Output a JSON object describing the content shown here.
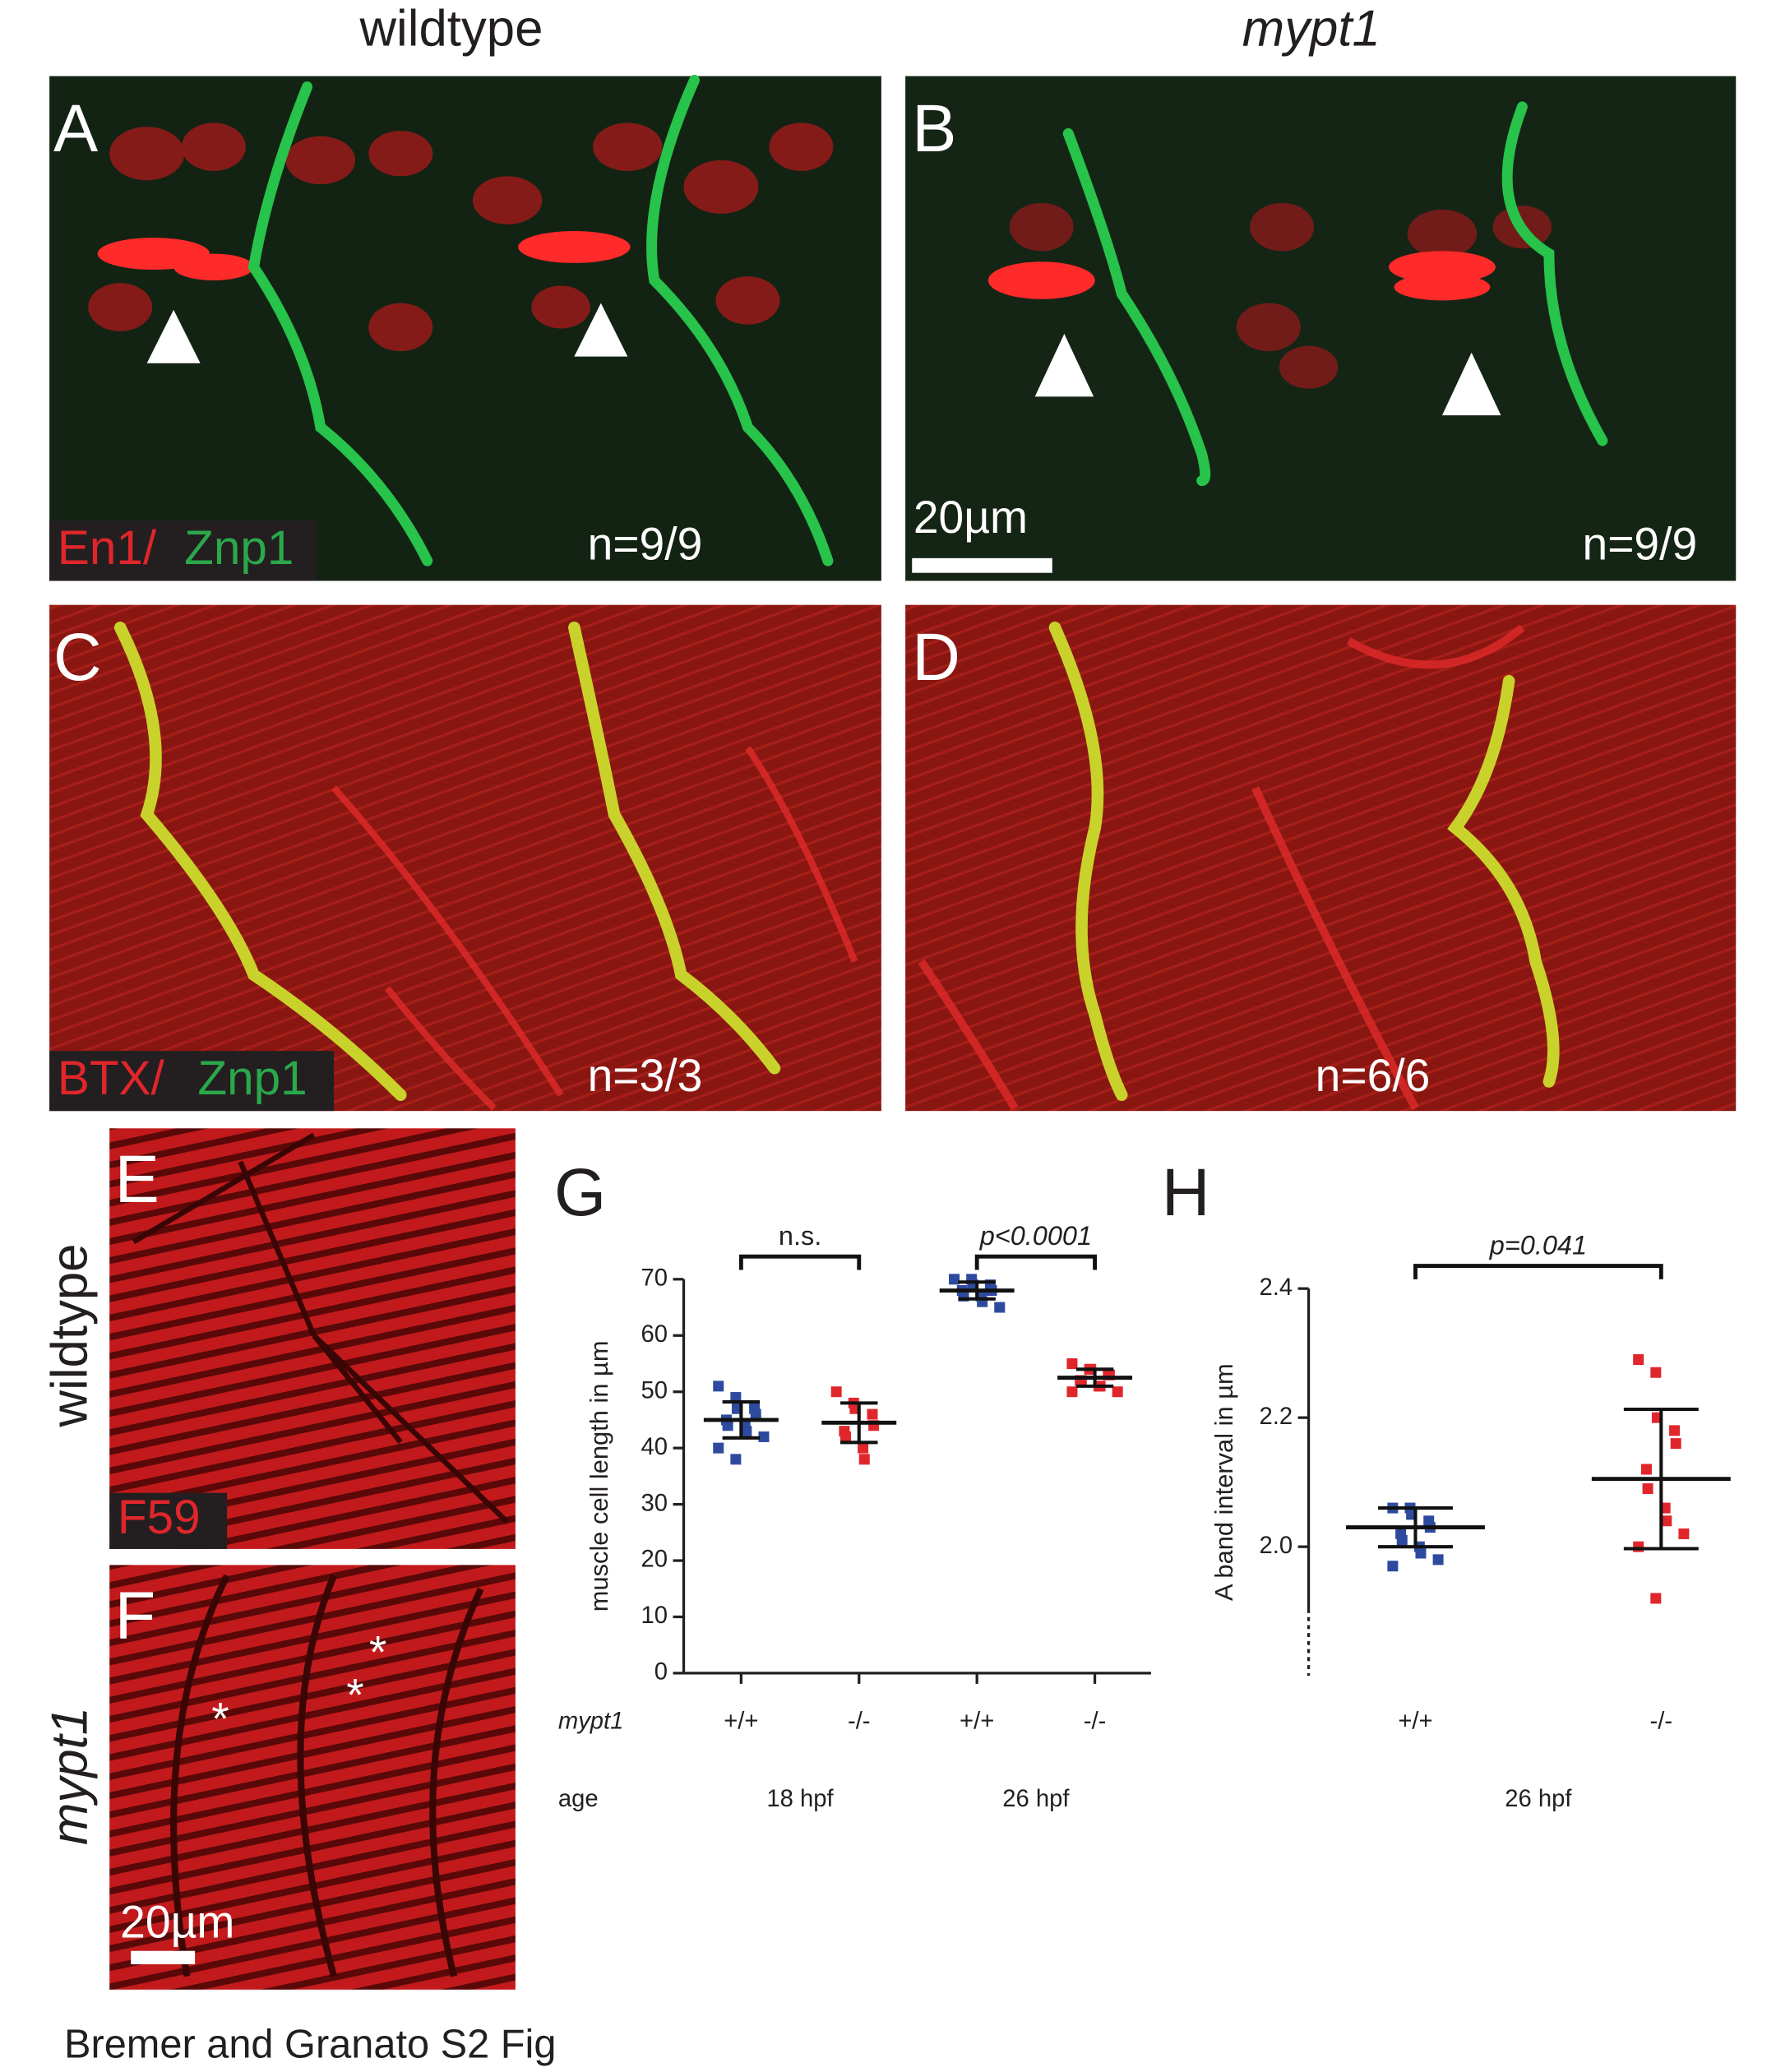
{
  "columns": [
    "wildtype",
    "mypt1"
  ],
  "panels": [
    {
      "letter": "A",
      "stain": [
        "En1/",
        "Znp1"
      ],
      "n": "n=9/9"
    },
    {
      "letter": "B",
      "scale": "20µm",
      "n": "n=9/9"
    },
    {
      "letter": "C",
      "stain": [
        "BTX/",
        "Znp1"
      ],
      "n": "n=3/3"
    },
    {
      "letter": "D",
      "n": "n=6/6"
    },
    {
      "letter": "E",
      "side": "wildtype",
      "stain": [
        "F59"
      ]
    },
    {
      "letter": "F",
      "side": "mypt1",
      "asterisks": [
        "*",
        "*",
        "*"
      ],
      "scale": "20µm"
    }
  ],
  "caption": "Bremer and Granato S2 Fig",
  "chart_data": [
    {
      "type": "scatter",
      "letter": "G",
      "ylabel": "muscle cell length in µm",
      "categories": [
        "+/+",
        "-/-",
        "+/+",
        "-/-"
      ],
      "row_labels": [
        "mypt1",
        "age"
      ],
      "ages": [
        "18 hpf",
        "26 hpf"
      ],
      "colors": [
        "#2e4a9e",
        "#e0262b",
        "#2e4a9e",
        "#e0262b"
      ],
      "values": [
        [
          51,
          49,
          47,
          47,
          46,
          45,
          44,
          44,
          43,
          42,
          40,
          38
        ],
        [
          50,
          48,
          47,
          46,
          44,
          43,
          42,
          40,
          38
        ],
        [
          70,
          70,
          69,
          69,
          68,
          68,
          67,
          67,
          66,
          65
        ],
        [
          55,
          54,
          54,
          53,
          53,
          52,
          52,
          51,
          51,
          50,
          50
        ]
      ],
      "means": [
        45,
        44.5,
        68,
        52.5
      ],
      "sd": [
        3.2,
        3.5,
        1.5,
        1.5
      ],
      "annotations": [
        "n.s.",
        "p<0.0001"
      ],
      "ylim": [
        0,
        70
      ],
      "yticks": [
        0,
        10,
        20,
        30,
        40,
        50,
        60,
        70
      ]
    },
    {
      "type": "scatter",
      "letter": "H",
      "ylabel": "A band interval in µm",
      "categories": [
        "+/+",
        "-/-"
      ],
      "ages": [
        "26 hpf"
      ],
      "colors": [
        "#2e4a9e",
        "#e0262b"
      ],
      "values": [
        [
          2.06,
          2.06,
          2.05,
          2.04,
          2.03,
          2.02,
          2.01,
          2.0,
          1.99,
          1.98,
          1.97
        ],
        [
          2.29,
          2.27,
          2.2,
          2.18,
          2.16,
          2.12,
          2.09,
          2.06,
          2.04,
          2.02,
          2.0,
          1.92
        ]
      ],
      "means": [
        2.03,
        2.105
      ],
      "sd": [
        0.03,
        0.108
      ],
      "annotations": [
        "p=0.041"
      ],
      "ylim": [
        1.8,
        2.4
      ],
      "yticks": [
        {
          "value": 2.0,
          "label": "2.0"
        },
        {
          "value": 2.2,
          "label": "2.2"
        },
        {
          "value": 2.4,
          "label": "2.4"
        }
      ]
    }
  ]
}
